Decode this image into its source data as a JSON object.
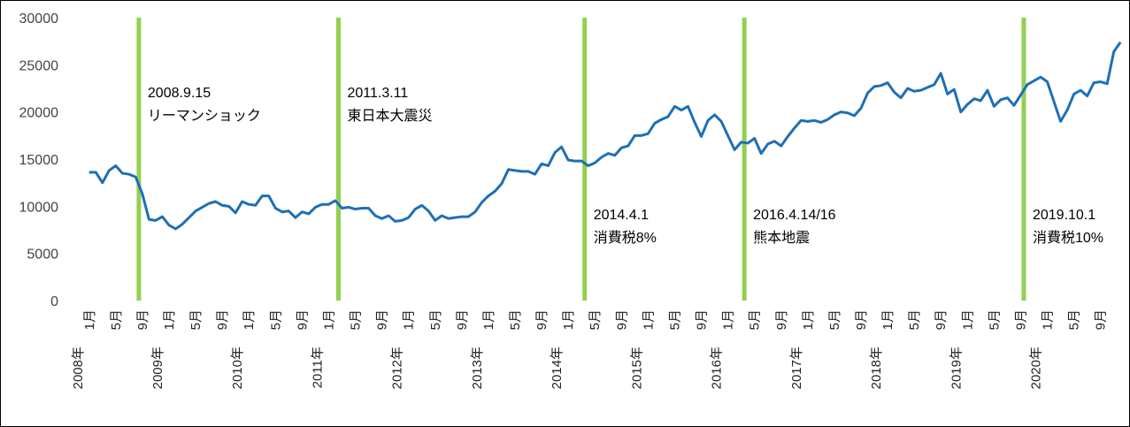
{
  "chart_data": {
    "type": "line",
    "categories": [
      "1月",
      null,
      null,
      null,
      "5月",
      null,
      null,
      null,
      "9月",
      null,
      null,
      null,
      "1月",
      null,
      null,
      null,
      "5月",
      null,
      null,
      null,
      "9月",
      null,
      null,
      null,
      "1月",
      null,
      null,
      null,
      "5月",
      null,
      null,
      null,
      "9月",
      null,
      null,
      null,
      "1月",
      null,
      null,
      null,
      "5月",
      null,
      null,
      null,
      "9月",
      null,
      null,
      null,
      "1月",
      null,
      null,
      null,
      "5月",
      null,
      null,
      null,
      "9月",
      null,
      null,
      null,
      "1月",
      null,
      null,
      null,
      "5月",
      null,
      null,
      null,
      "9月",
      null,
      null,
      null,
      "1月",
      null,
      null,
      null,
      "5月",
      null,
      null,
      null,
      "9月",
      null,
      null,
      null,
      "1月",
      null,
      null,
      null,
      "5月",
      null,
      null,
      null,
      "9月",
      null,
      null,
      null,
      "1月",
      null,
      null,
      null,
      "5月",
      null,
      null,
      null,
      "9月",
      null,
      null,
      null,
      "1月",
      null,
      null,
      null,
      "5月",
      null,
      null,
      null,
      "9月",
      null,
      null,
      null,
      "1月",
      null,
      null,
      null,
      "5月",
      null,
      null,
      null,
      "9月",
      null,
      null,
      null,
      "1月",
      null,
      null,
      null,
      "5月",
      null,
      null,
      null,
      "9月",
      null,
      null,
      null,
      "1月",
      null,
      null,
      null,
      "5月",
      null,
      null,
      null,
      "9月",
      null,
      null,
      null
    ],
    "year_labels": [
      "2008年",
      "2009年",
      "2010年",
      "2011年",
      "2012年",
      "2013年",
      "2014年",
      "2015年",
      "2016年",
      "2017年",
      "2018年",
      "2019年",
      "2020年"
    ],
    "series": [
      {
        "color": "#1f6fb5",
        "values": [
          13600,
          13600,
          12500,
          13800,
          14300,
          13500,
          13400,
          13100,
          11300,
          8600,
          8500,
          8900,
          8000,
          7600,
          8100,
          8800,
          9500,
          9900,
          10300,
          10500,
          10100,
          10000,
          9300,
          10500,
          10200,
          10100,
          11100,
          11100,
          9800,
          9400,
          9500,
          8800,
          9400,
          9200,
          9900,
          10200,
          10200,
          10600,
          9800,
          9900,
          9700,
          9800,
          9800,
          9000,
          8700,
          9000,
          8400,
          8500,
          8800,
          9700,
          10100,
          9500,
          8500,
          9000,
          8700,
          8800,
          8900,
          8900,
          9400,
          10400,
          11100,
          11600,
          12400,
          13900,
          13800,
          13700,
          13700,
          13400,
          14500,
          14300,
          15700,
          16300,
          14900,
          14800,
          14800,
          14300,
          14600,
          15200,
          15600,
          15400,
          16200,
          16400,
          17500,
          17500,
          17700,
          18800,
          19200,
          19500,
          20600,
          20200,
          20600,
          18900,
          17400,
          19100,
          19700,
          19000,
          17500,
          16000,
          16800,
          16700,
          17200,
          15600,
          16600,
          16900,
          16400,
          17400,
          18300,
          19100,
          19000,
          19100,
          18900,
          19200,
          19700,
          20000,
          19900,
          19600,
          20400,
          22000,
          22700,
          22800,
          23100,
          22100,
          21500,
          22500,
          22200,
          22300,
          22600,
          22900,
          24100,
          21900,
          22400,
          20000,
          20800,
          21400,
          21200,
          22300,
          20600,
          21300,
          21500,
          20700,
          21800,
          22900,
          23300,
          23700,
          23200,
          21100,
          19000,
          20200,
          21900,
          22300,
          21700,
          23100,
          23200,
          23000,
          26400,
          27400
        ]
      }
    ],
    "ylim": [
      0,
      30000
    ],
    "yticks": [
      0,
      5000,
      10000,
      15000,
      20000,
      25000,
      30000
    ],
    "grid": false,
    "event_color": "#92d050",
    "events": [
      {
        "index": 8,
        "date": "2008.9.15",
        "name": "リーマンショック"
      },
      {
        "index": 38,
        "date": "2011.3.11",
        "name": "東日本大震災"
      },
      {
        "index": 75,
        "date": "2014.4.1",
        "name": "消費税8%"
      },
      {
        "index": 99,
        "date": "2016.4.14/16",
        "name": "熊本地震"
      },
      {
        "index": 141,
        "date": "2019.10.1",
        "name": "消費税10%"
      }
    ]
  }
}
